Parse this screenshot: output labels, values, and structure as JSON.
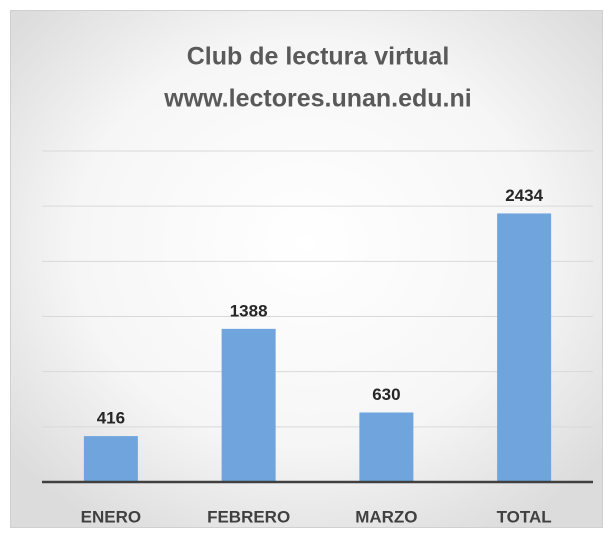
{
  "chart_data": {
    "type": "bar",
    "title": "Club de lectura virtual",
    "subtitle": "www.lectores.unan.edu.ni",
    "categories": [
      "ENERO",
      "FEBRERO",
      "MARZO",
      "TOTAL"
    ],
    "values": [
      416,
      1388,
      630,
      2434
    ],
    "color": "#6fa5dc",
    "ylim": [
      0,
      3000
    ],
    "yticks": [
      0,
      500,
      1000,
      1500,
      2000,
      2500,
      3000
    ],
    "grid": true
  }
}
